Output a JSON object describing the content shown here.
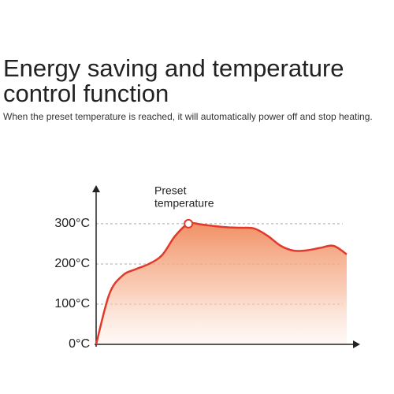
{
  "chart_data": {
    "type": "area",
    "title": [
      "Energy saving and temperature",
      "control function"
    ],
    "subtitle": "When the preset temperature is reached, it will automatically power off and stop heating.",
    "annotation": [
      "Preset",
      "temperature"
    ],
    "annotation_index": 7,
    "categories": [
      null,
      null,
      null,
      null,
      null,
      null,
      null,
      null,
      null,
      null,
      null,
      null,
      null,
      null,
      null,
      null,
      null,
      null,
      null,
      null
    ],
    "values": [
      0,
      125,
      171,
      187,
      200,
      222,
      270,
      300,
      298,
      294,
      291,
      290,
      288,
      270,
      245,
      233,
      234,
      240,
      245,
      224
    ],
    "color": "#e2392b",
    "ylim": [
      0,
      390
    ],
    "yticks": [
      {
        "value": 0,
        "label": "0°C"
      },
      {
        "value": 100,
        "label": "100°C"
      },
      {
        "value": 200,
        "label": "200°C"
      },
      {
        "value": 300,
        "label": "300°C"
      }
    ],
    "grid": true
  }
}
